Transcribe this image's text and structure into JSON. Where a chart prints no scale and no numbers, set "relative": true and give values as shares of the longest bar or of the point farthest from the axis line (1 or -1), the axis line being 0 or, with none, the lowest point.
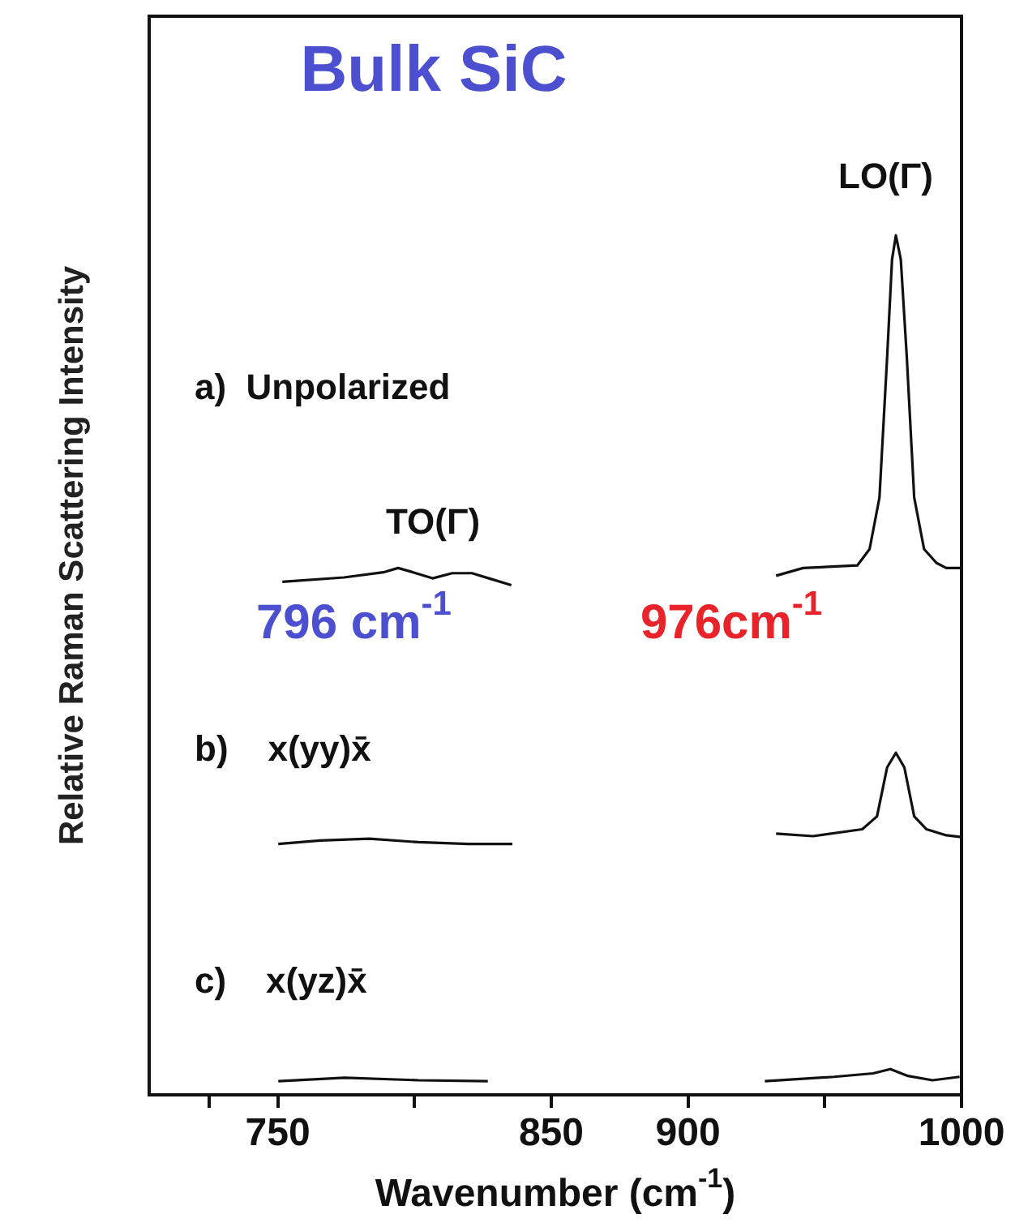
{
  "chart_data": {
    "type": "line",
    "title": "Bulk SiC",
    "xlabel": "Wavenumber (cm$^{-1}$)",
    "ylabel": "Relative Raman Scattering Intensity",
    "relative": true,
    "xlim": [
      703,
      1000
    ],
    "xticks": [
      {
        "value": 725,
        "label": null
      },
      750,
      {
        "value": 800,
        "label": null
      },
      850,
      900,
      {
        "value": 950,
        "label": null
      },
      1000
    ],
    "grid": false,
    "legend": false,
    "marker": "none",
    "annotations": [
      "a)  Unpolarized",
      "b)    x(yy)x̄",
      "c)    x(yz)x̄",
      "LO(Γ)",
      "TO(Γ)",
      "796 cm$^{-1}$",
      "976cm$^{-1}$"
    ],
    "series": [
      {
        "color": "#111111",
        "x": [
          751.7,
          774.2,
          788.6,
          794,
          799.5,
          806.6,
          813.8,
          821,
          828.2,
          835.4,
          880,
          932.2,
          942.1,
          961.9,
          966.4,
          970,
          972.8,
          974.6,
          976,
          977.8,
          980,
          982.7,
          986.3,
          990.8,
          994.4,
          1000
        ],
        "values": [
          0.597,
          0.602,
          0.608,
          0.613,
          0.608,
          0.601,
          0.607,
          0.607,
          0.6,
          0.593,
          null,
          0.604,
          0.613,
          0.616,
          0.635,
          0.695,
          0.858,
          0.972,
          1.0,
          0.972,
          0.858,
          0.695,
          0.635,
          0.619,
          0.613,
          0.613
        ]
      },
      {
        "color": "#111111",
        "x": [
          750.2,
          765.5,
          783.5,
          801.5,
          819.6,
          835.8,
          880,
          932.2,
          945.7,
          963.7,
          969.1,
          972.8,
          976,
          979.1,
          982.7,
          987.2,
          994.4,
          1000
        ],
        "values": [
          0.292,
          0.296,
          0.298,
          0.294,
          0.292,
          0.292,
          null,
          0.304,
          0.301,
          0.309,
          0.324,
          0.381,
          0.398,
          0.381,
          0.324,
          0.309,
          0.302,
          0.3
        ]
      },
      {
        "color": "#111111",
        "x": [
          750.2,
          774.5,
          801.5,
          826.8,
          880,
          928.1,
          953.4,
          967.7,
          974,
          980.4,
          989.4,
          999.3
        ],
        "values": [
          0.016,
          0.02,
          0.017,
          0.016,
          null,
          0.016,
          0.021,
          0.025,
          0.03,
          0.022,
          0.017,
          0.021
        ]
      }
    ]
  }
}
